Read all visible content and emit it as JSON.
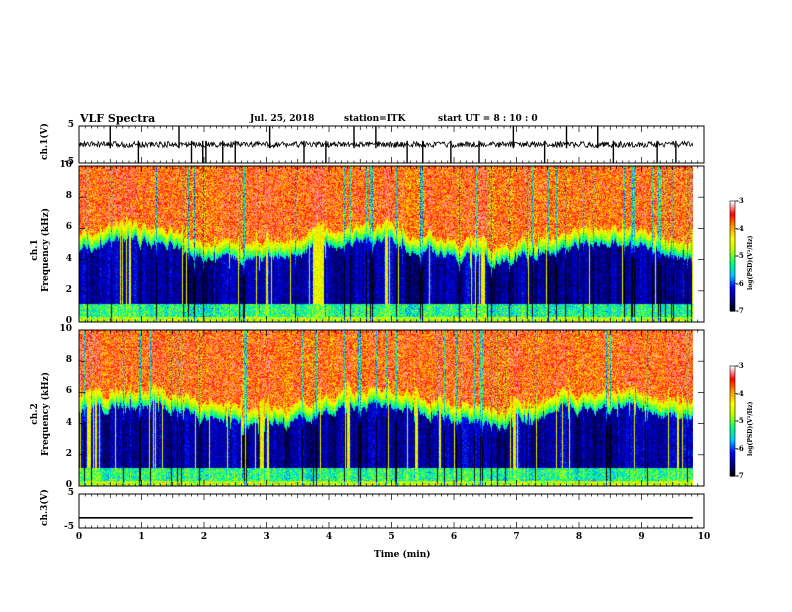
{
  "header": {
    "title": "VLF Spectra",
    "date": "Jul. 25, 2018",
    "station": "station=ITK",
    "start": "start UT =  8 : 10 : 0"
  },
  "colors": {
    "spectrogram_stops": [
      "#000000",
      "#00007a",
      "#0000ff",
      "#00c8ff",
      "#00ff7f",
      "#b4ff00",
      "#ffff00",
      "#ff9600",
      "#ff0000",
      "#ffffff"
    ]
  },
  "chart_data": [
    {
      "type": "line",
      "panel": "ch1-waveform",
      "ylabel": "ch.1(V)",
      "ylim": [
        -5,
        5
      ],
      "yticks": [
        "5",
        "-5"
      ],
      "x": "time (min)",
      "xlim": [
        0,
        10
      ],
      "baseline": 0,
      "spikes": [
        0.5,
        0.95,
        1.6,
        1.8,
        1.98,
        2.03,
        2.3,
        2.5,
        3.05,
        3.6,
        3.95,
        4.4,
        4.75,
        5.25,
        5.5,
        5.95,
        6.4,
        6.95,
        7.45,
        7.8,
        8.3,
        8.55,
        9.25,
        9.55
      ]
    },
    {
      "type": "heatmap",
      "panel": "ch1-spectrogram",
      "ylabel": "ch.1\nFrequency (kHz)",
      "xlim": [
        0,
        10
      ],
      "ylim": [
        0,
        10
      ],
      "yticks": [
        "0",
        "2",
        "4",
        "6",
        "8",
        "10"
      ],
      "colorbar": {
        "label": "log(PSD)(V²/Hz)",
        "range": [
          -7,
          -3
        ],
        "ticks": [
          "-3",
          "-4",
          "-5",
          "-6",
          "-7"
        ]
      },
      "description_levels": {
        "low_freq_band_khz": [
          0,
          1.2
        ],
        "quiet_band_khz": [
          1.2,
          5.5
        ],
        "active_band_khz": [
          5.5,
          10
        ]
      }
    },
    {
      "type": "heatmap",
      "panel": "ch2-spectrogram",
      "ylabel": "ch.2\nFrequency (kHz)",
      "xlim": [
        0,
        10
      ],
      "ylim": [
        0,
        10
      ],
      "yticks": [
        "0",
        "2",
        "4",
        "6",
        "8",
        "10"
      ],
      "colorbar": {
        "label": "log(PSD)(V²/Hz)",
        "range": [
          -7,
          -3
        ],
        "ticks": [
          "-3",
          "-4",
          "-5",
          "-6",
          "-7"
        ]
      }
    },
    {
      "type": "line",
      "panel": "ch3-waveform",
      "ylabel": "ch.3(V)",
      "ylim": [
        -5,
        5
      ],
      "yticks": [
        "5",
        "-5"
      ],
      "xlabel": "Time (min)",
      "xlim": [
        0,
        10
      ],
      "xticks": [
        "0",
        "1",
        "2",
        "3",
        "4",
        "5",
        "6",
        "7",
        "8",
        "9",
        "10"
      ],
      "baseline": -2
    }
  ]
}
